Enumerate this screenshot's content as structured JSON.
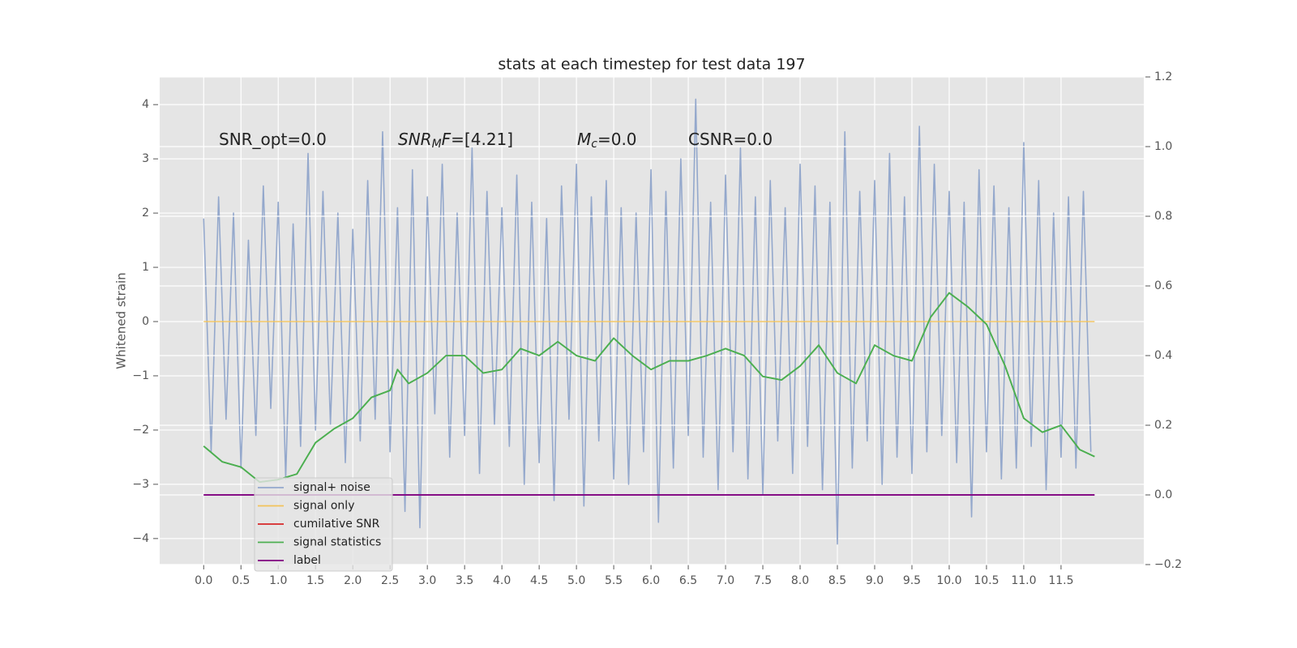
{
  "chart_data": {
    "type": "line",
    "title": "stats at each timestep for test data 197",
    "y_label": "Whitened strain",
    "annotations": [
      [
        {
          "text": "SNR_opt=0.0"
        }
      ],
      [
        {
          "text": "SNR",
          "italic": true
        },
        {
          "text": "M",
          "italic": true,
          "sub": true
        },
        {
          "text": "F",
          "italic": true
        },
        {
          "text": "=[4.21]"
        }
      ],
      [
        {
          "text": "M",
          "italic": true
        },
        {
          "text": "c",
          "italic": true,
          "sub": true
        },
        {
          "text": "=0.0"
        }
      ],
      [
        {
          "text": "CSNR=0.0"
        }
      ]
    ],
    "xlim": [
      -0.59,
      12.61
    ],
    "ylim": [
      -4.48,
      4.51
    ],
    "y2lim": [
      -0.2,
      1.2
    ],
    "xticks": [
      {
        "value": 0,
        "label": "0.0"
      },
      0.5,
      {
        "value": 1,
        "label": "1.0"
      },
      1.5,
      {
        "value": 2,
        "label": "2.0"
      },
      2.5,
      {
        "value": 3,
        "label": "3.0"
      },
      3.5,
      {
        "value": 4,
        "label": "4.0"
      },
      4.5,
      {
        "value": 5,
        "label": "5.0"
      },
      5.5,
      {
        "value": 6,
        "label": "6.0"
      },
      6.5,
      {
        "value": 7,
        "label": "7.0"
      },
      7.5,
      {
        "value": 8,
        "label": "8.0"
      },
      8.5,
      {
        "value": 9,
        "label": "9.0"
      },
      9.5,
      {
        "value": 10,
        "label": "10.0"
      },
      10.5,
      {
        "value": 11,
        "label": "11.0"
      },
      11.5
    ],
    "yticks": [
      {
        "value": -4,
        "label": "−4"
      },
      {
        "value": -3,
        "label": "−3"
      },
      {
        "value": -2,
        "label": "−2"
      },
      {
        "value": -1,
        "label": "−1"
      },
      0,
      1,
      2,
      3,
      4
    ],
    "y2ticks": [
      {
        "value": -0.2,
        "label": "−0.2"
      },
      {
        "value": 0,
        "label": "0.0"
      },
      0.2,
      0.4,
      0.6,
      0.8,
      {
        "value": 1,
        "label": "1.0"
      },
      1.2
    ],
    "grid": true,
    "legend": "lower left",
    "series": [
      {
        "name": "signal+ noise",
        "color": "#94a8cc",
        "axis": "y",
        "x": [
          0,
          0.1,
          0.2,
          0.3,
          0.4,
          0.5,
          0.6,
          0.7,
          0.8,
          0.9,
          1,
          1.1,
          1.2,
          1.3,
          1.4,
          1.5,
          1.6,
          1.7,
          1.8,
          1.9,
          2,
          2.1,
          2.2,
          2.3,
          2.4,
          2.5,
          2.6,
          2.7,
          2.8,
          2.9,
          3,
          3.1,
          3.2,
          3.3,
          3.4,
          3.5,
          3.6,
          3.7,
          3.8,
          3.9,
          4,
          4.1,
          4.2,
          4.3,
          4.4,
          4.5,
          4.6,
          4.7,
          4.8,
          4.9,
          5,
          5.1,
          5.2,
          5.3,
          5.4,
          5.5,
          5.6,
          5.7,
          5.8,
          5.9,
          6,
          6.1,
          6.2,
          6.3,
          6.4,
          6.5,
          6.6,
          6.7,
          6.8,
          6.9,
          7,
          7.1,
          7.2,
          7.3,
          7.4,
          7.5,
          7.6,
          7.7,
          7.8,
          7.9,
          8,
          8.1,
          8.2,
          8.3,
          8.4,
          8.5,
          8.6,
          8.7,
          8.8,
          8.9,
          9,
          9.1,
          9.2,
          9.3,
          9.4,
          9.5,
          9.6,
          9.7,
          9.8,
          9.9,
          10,
          10.1,
          10.2,
          10.3,
          10.4,
          10.5,
          10.6,
          10.7,
          10.8,
          10.9,
          11,
          11.1,
          11.2,
          11.3,
          11.4,
          11.5,
          11.6,
          11.7,
          11.8,
          11.9
        ],
        "values": [
          1.9,
          -2.4,
          2.3,
          -1.8,
          2.0,
          -2.7,
          1.5,
          -2.1,
          2.5,
          -1.6,
          2.2,
          -2.9,
          1.8,
          -2.3,
          3.1,
          -2.0,
          2.4,
          -1.9,
          2.0,
          -2.6,
          1.7,
          -2.2,
          2.6,
          -1.8,
          3.5,
          -2.4,
          2.1,
          -3.5,
          2.8,
          -3.8,
          2.3,
          -1.7,
          2.9,
          -2.5,
          2.0,
          -2.1,
          3.2,
          -2.8,
          2.4,
          -1.9,
          2.1,
          -2.3,
          2.7,
          -3.0,
          2.2,
          -2.6,
          1.9,
          -3.3,
          2.5,
          -1.8,
          2.9,
          -3.4,
          2.3,
          -2.2,
          2.6,
          -2.9,
          2.1,
          -3.0,
          2.0,
          -2.4,
          2.8,
          -3.7,
          2.4,
          -2.7,
          3.0,
          -2.1,
          4.1,
          -2.5,
          2.2,
          -3.1,
          2.7,
          -2.4,
          3.2,
          -2.9,
          2.3,
          -3.2,
          2.6,
          -2.2,
          2.1,
          -2.8,
          2.9,
          -2.3,
          2.5,
          -3.1,
          2.2,
          -4.1,
          3.5,
          -2.7,
          2.4,
          -2.2,
          2.6,
          -3.0,
          3.1,
          -2.5,
          2.3,
          -2.8,
          3.6,
          -2.4,
          2.9,
          -2.1,
          2.4,
          -2.6,
          2.2,
          -3.6,
          2.8,
          -2.4,
          2.5,
          -2.9,
          2.1,
          -2.7,
          3.3,
          -2.3,
          2.6,
          -3.1,
          2.0,
          -2.5,
          2.3,
          -2.7,
          2.4,
          -2.4
        ]
      },
      {
        "name": "signal only",
        "color": "#f2c35a",
        "axis": "y",
        "x": [
          0,
          11.95
        ],
        "values": [
          0,
          0
        ]
      },
      {
        "name": "cumilative SNR",
        "color": "#d62728",
        "axis": "y2",
        "x": [],
        "values": []
      },
      {
        "name": "signal statistics",
        "color": "#4caf50",
        "axis": "y2",
        "x": [
          0,
          0.25,
          0.5,
          0.75,
          1,
          1.25,
          1.5,
          1.75,
          2,
          2.25,
          2.5,
          2.6,
          2.75,
          3,
          3.25,
          3.5,
          3.75,
          4,
          4.25,
          4.5,
          4.75,
          5,
          5.25,
          5.5,
          5.75,
          6,
          6.25,
          6.5,
          6.75,
          7,
          7.25,
          7.5,
          7.75,
          8,
          8.25,
          8.5,
          8.75,
          9,
          9.25,
          9.5,
          9.75,
          10,
          10.25,
          10.5,
          10.75,
          11,
          11.25,
          11.5,
          11.75,
          11.95
        ],
        "values": [
          0.14,
          0.095,
          0.08,
          0.037,
          0.044,
          0.06,
          0.15,
          0.19,
          0.22,
          0.28,
          0.3,
          0.36,
          0.32,
          0.35,
          0.4,
          0.4,
          0.35,
          0.36,
          0.42,
          0.4,
          0.44,
          0.4,
          0.385,
          0.45,
          0.4,
          0.36,
          0.385,
          0.385,
          0.4,
          0.42,
          0.4,
          0.34,
          0.33,
          0.37,
          0.43,
          0.35,
          0.32,
          0.43,
          0.4,
          0.385,
          0.51,
          0.58,
          0.54,
          0.49,
          0.37,
          0.22,
          0.18,
          0.2,
          0.13,
          0.11
        ]
      },
      {
        "name": "label",
        "color": "#800080",
        "axis": "y2",
        "x": [
          0,
          11.95
        ],
        "values": [
          0,
          0
        ]
      }
    ]
  }
}
